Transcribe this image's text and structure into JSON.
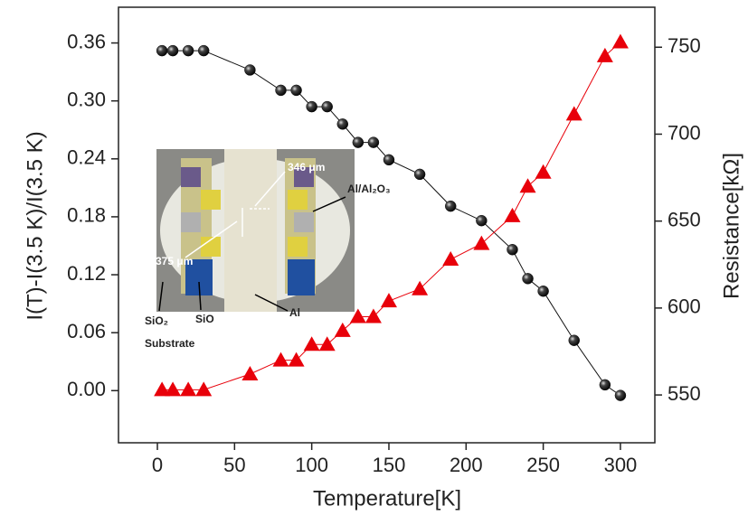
{
  "chart_data": {
    "type": "scatter",
    "x_label": "Temperature[K]",
    "y_label": "I(T)-I(3.5 K)/I(3.5 K)",
    "y2_label": "Resistance[kΩ]",
    "x": [
      3,
      10,
      20,
      30,
      60,
      80,
      90,
      100,
      110,
      120,
      130,
      140,
      150,
      170,
      190,
      210,
      230,
      240,
      250,
      270,
      290,
      300
    ],
    "series": [
      {
        "color": "#111111",
        "marker": "circle",
        "axis": "y",
        "values": [
          0.352,
          0.352,
          0.352,
          0.352,
          0.332,
          0.311,
          0.311,
          0.294,
          0.294,
          0.276,
          0.257,
          0.257,
          0.239,
          0.224,
          0.191,
          0.176,
          0.146,
          0.116,
          0.103,
          0.052,
          0.006,
          -0.005
        ]
      },
      {
        "color": "#e8000a",
        "marker": "triangle",
        "axis": "y2",
        "values": [
          553,
          553,
          553,
          553,
          562,
          570,
          570,
          579,
          579,
          587,
          595,
          595,
          604,
          611,
          628,
          637,
          653,
          670,
          678,
          711.5,
          745,
          753
        ]
      }
    ],
    "xlim": [
      -25.2,
      322.3
    ],
    "xticks": [
      0,
      50,
      100,
      150,
      200,
      250,
      300
    ],
    "ylim": [
      -0.054,
      0.397
    ],
    "yticks": [
      {
        "value": 0,
        "label": "0.00"
      },
      {
        "value": 0.06,
        "label": "0.06"
      },
      {
        "value": 0.12,
        "label": "0.12"
      },
      {
        "value": 0.18,
        "label": "0.18"
      },
      {
        "value": 0.24,
        "label": "0.24"
      },
      {
        "value": 0.3,
        "label": "0.30"
      },
      {
        "value": 0.36,
        "label": "0.36"
      }
    ],
    "y2lim": [
      522.5,
      773
    ],
    "y2ticks": [
      550,
      600,
      650,
      700,
      750
    ],
    "grid": false,
    "annotations": [
      "346 μm",
      "375 μm",
      "Al/Al₂O₃",
      "SiO₂",
      "Substrate",
      "SiO",
      "Al"
    ]
  }
}
